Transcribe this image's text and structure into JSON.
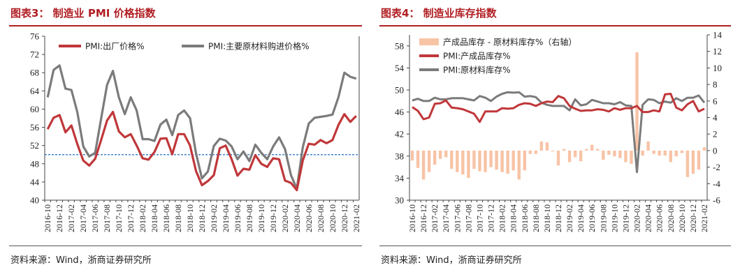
{
  "left": {
    "title": "图表3：  制造业 PMI 价格指数",
    "source": "资料来源：Wind，浙商证券研究所"
  },
  "right": {
    "title": "图表4：  制造业库存指数",
    "source": "资料来源：Wind，浙商证券研究所"
  },
  "colors": {
    "title_red": "#b11e23",
    "series_red": "#c0373a",
    "series_gray": "#7b7b7b",
    "bar_peach": "#f7c4a6",
    "ref_line": "#1f6fbf"
  },
  "chart_data": [
    {
      "type": "line",
      "x": [
        "2016-10",
        "2016-11",
        "2016-12",
        "2017-01",
        "2017-02",
        "2017-03",
        "2017-04",
        "2017-05",
        "2017-06",
        "2017-07",
        "2017-08",
        "2017-09",
        "2017-10",
        "2017-11",
        "2017-12",
        "2018-01",
        "2018-02",
        "2018-03",
        "2018-04",
        "2018-05",
        "2018-06",
        "2018-07",
        "2018-08",
        "2018-09",
        "2018-10",
        "2018-11",
        "2018-12",
        "2019-01",
        "2019-02",
        "2019-03",
        "2019-04",
        "2019-05",
        "2019-06",
        "2019-07",
        "2019-08",
        "2019-09",
        "2019-10",
        "2019-11",
        "2019-12",
        "2020-01",
        "2020-02",
        "2020-03",
        "2020-04",
        "2020-05",
        "2020-06",
        "2020-07",
        "2020-08",
        "2020-09",
        "2020-10",
        "2020-11",
        "2020-12",
        "2021-01",
        "2021-02"
      ],
      "tick_labels": [
        "2016-10",
        "2016-12",
        "2017-02",
        "2017-04",
        "2017-06",
        "2017-08",
        "2017-10",
        "2017-12",
        "2018-02",
        "2018-04",
        "2018-06",
        "2018-08",
        "2018-10",
        "2018-12",
        "2019-02",
        "2019-04",
        "2019-06",
        "2019-08",
        "2019-10",
        "2019-12",
        "2020-02",
        "2020-04",
        "2020-06",
        "2020-08",
        "2020-10",
        "2020-12",
        "2021-02"
      ],
      "y_ticks": [
        40,
        44,
        48,
        52,
        56,
        60,
        64,
        68,
        72,
        76
      ],
      "ylim": [
        40,
        76
      ],
      "reference_line": 50,
      "grid": false,
      "legend_position": "top",
      "series": [
        {
          "name": "PMI:出厂价格%",
          "values": [
            55.6,
            58.1,
            58.7,
            54.9,
            56.4,
            52.3,
            48.7,
            47.6,
            49.1,
            53.2,
            57.5,
            59.4,
            55.1,
            53.8,
            54.5,
            52.0,
            49.2,
            48.9,
            50.6,
            53.5,
            53.6,
            50.1,
            54.5,
            54.5,
            52.0,
            46.4,
            43.3,
            44.2,
            45.5,
            51.4,
            52.0,
            49.0,
            45.4,
            46.9,
            46.7,
            49.9,
            48.0,
            47.3,
            49.2,
            49.0,
            44.3,
            43.8,
            42.2,
            48.7,
            52.4,
            52.2,
            53.2,
            52.5,
            53.2,
            56.5,
            58.9,
            57.2,
            58.5
          ]
        },
        {
          "name": "PMI:主要原材料购进价格%",
          "values": [
            62.6,
            68.6,
            69.6,
            64.5,
            64.2,
            59.3,
            51.8,
            49.6,
            50.4,
            57.9,
            65.3,
            68.4,
            62.6,
            58.9,
            62.6,
            59.7,
            53.4,
            53.4,
            53.0,
            56.6,
            57.7,
            54.3,
            58.7,
            59.7,
            58.0,
            50.3,
            44.8,
            46.3,
            51.9,
            53.5,
            53.1,
            51.8,
            49.0,
            50.7,
            48.6,
            52.2,
            50.4,
            49.0,
            51.8,
            53.8,
            51.2,
            45.5,
            42.5,
            51.6,
            56.8,
            58.1,
            58.3,
            58.5,
            58.8,
            62.6,
            68.0,
            67.1,
            66.7
          ]
        }
      ]
    },
    {
      "type": "line",
      "x": [
        "2016-10",
        "2016-11",
        "2016-12",
        "2017-01",
        "2017-02",
        "2017-03",
        "2017-04",
        "2017-05",
        "2017-06",
        "2017-07",
        "2017-08",
        "2017-09",
        "2017-10",
        "2017-11",
        "2017-12",
        "2018-01",
        "2018-02",
        "2018-03",
        "2018-04",
        "2018-05",
        "2018-06",
        "2018-07",
        "2018-08",
        "2018-09",
        "2018-10",
        "2018-11",
        "2018-12",
        "2019-01",
        "2019-02",
        "2019-03",
        "2019-04",
        "2019-05",
        "2019-06",
        "2019-07",
        "2019-08",
        "2019-09",
        "2019-10",
        "2019-11",
        "2019-12",
        "2020-01",
        "2020-02",
        "2020-03",
        "2020-04",
        "2020-05",
        "2020-06",
        "2020-07",
        "2020-08",
        "2020-09",
        "2020-10",
        "2020-11",
        "2020-12",
        "2021-01",
        "2021-02"
      ],
      "tick_labels": [
        "2016-10",
        "2016-12",
        "2017-02",
        "2017-04",
        "2017-06",
        "2017-08",
        "2017-10",
        "2017-12",
        "2018-02",
        "2018-04",
        "2018-06",
        "2018-08",
        "2018-10",
        "2018-12",
        "2019-02",
        "2019-04",
        "2019-06",
        "2019-08",
        "2019-10",
        "2019-12",
        "2020-02",
        "2020-04",
        "2020-06",
        "2020-08",
        "2020-10",
        "2020-12",
        "2021-02"
      ],
      "y_ticks_left": [
        30,
        34,
        38,
        42,
        46,
        50,
        54,
        58
      ],
      "ylim_left": [
        30,
        60
      ],
      "y_ticks_right": [
        -6,
        -4,
        -2,
        0,
        2,
        4,
        6,
        8,
        10,
        12,
        14
      ],
      "ylim_right": [
        -6,
        14
      ],
      "grid": false,
      "legend_position": "top",
      "series": [
        {
          "name": "产成品库存 - 原材料库存%（右轴）",
          "axis": "right",
          "kind": "bar",
          "values": [
            -1.2,
            -2.1,
            -3.5,
            -2.6,
            -1.7,
            -1.0,
            -0.8,
            -2.2,
            -2.6,
            -2.9,
            -3.3,
            -2.2,
            -2.5,
            -2.6,
            -2.0,
            -2.3,
            -2.6,
            -2.8,
            -2.4,
            -3.5,
            -2.4,
            -0.4,
            -0.4,
            1.1,
            1.0,
            -0.1,
            -1.8,
            0.2,
            -1.4,
            -0.8,
            -1.3,
            0.2,
            0.7,
            0.2,
            -1.1,
            -0.5,
            -0.7,
            -0.9,
            -1.4,
            -1.6,
            11.9,
            -0.6,
            1.1,
            -0.4,
            -0.6,
            -0.6,
            -1.4,
            -0.7,
            -0.3,
            -3.2,
            -2.8,
            -2.3,
            0.4
          ]
        },
        {
          "name": "PMI:产成品库存%",
          "axis": "left",
          "kind": "line",
          "values": [
            46.9,
            46.2,
            44.7,
            45.0,
            47.5,
            47.6,
            48.1,
            46.8,
            46.7,
            46.5,
            46.1,
            45.7,
            44.2,
            46.1,
            46.1,
            46.1,
            46.7,
            46.6,
            46.7,
            47.3,
            47.6,
            47.5,
            47.1,
            47.6,
            47.9,
            47.8,
            48.9,
            48.5,
            47.1,
            46.6,
            46.2,
            46.3,
            46.3,
            46.5,
            46.4,
            46.1,
            46.7,
            46.4,
            46.7,
            46.7,
            47.1,
            46.0,
            46.0,
            46.3,
            46.1,
            49.2,
            49.3,
            46.8,
            46.3,
            47.4,
            48.0,
            46.1,
            46.6
          ]
        },
        {
          "name": "PMI:原材料库存%",
          "axis": "left",
          "kind": "line",
          "values": [
            48.1,
            48.4,
            48.0,
            48.0,
            48.6,
            48.3,
            48.3,
            48.5,
            48.5,
            48.5,
            48.3,
            48.1,
            48.9,
            48.6,
            48.0,
            48.8,
            49.3,
            49.6,
            49.5,
            49.6,
            48.8,
            48.9,
            48.7,
            47.7,
            47.3,
            47.1,
            47.1,
            47.1,
            46.3,
            48.3,
            47.2,
            47.4,
            48.2,
            47.9,
            47.6,
            47.6,
            47.4,
            47.8,
            47.2,
            47.1,
            35.1,
            47.3,
            48.3,
            48.2,
            47.6,
            47.9,
            47.7,
            48.5,
            48.0,
            48.6,
            48.6,
            49.0,
            47.7
          ]
        }
      ]
    }
  ]
}
